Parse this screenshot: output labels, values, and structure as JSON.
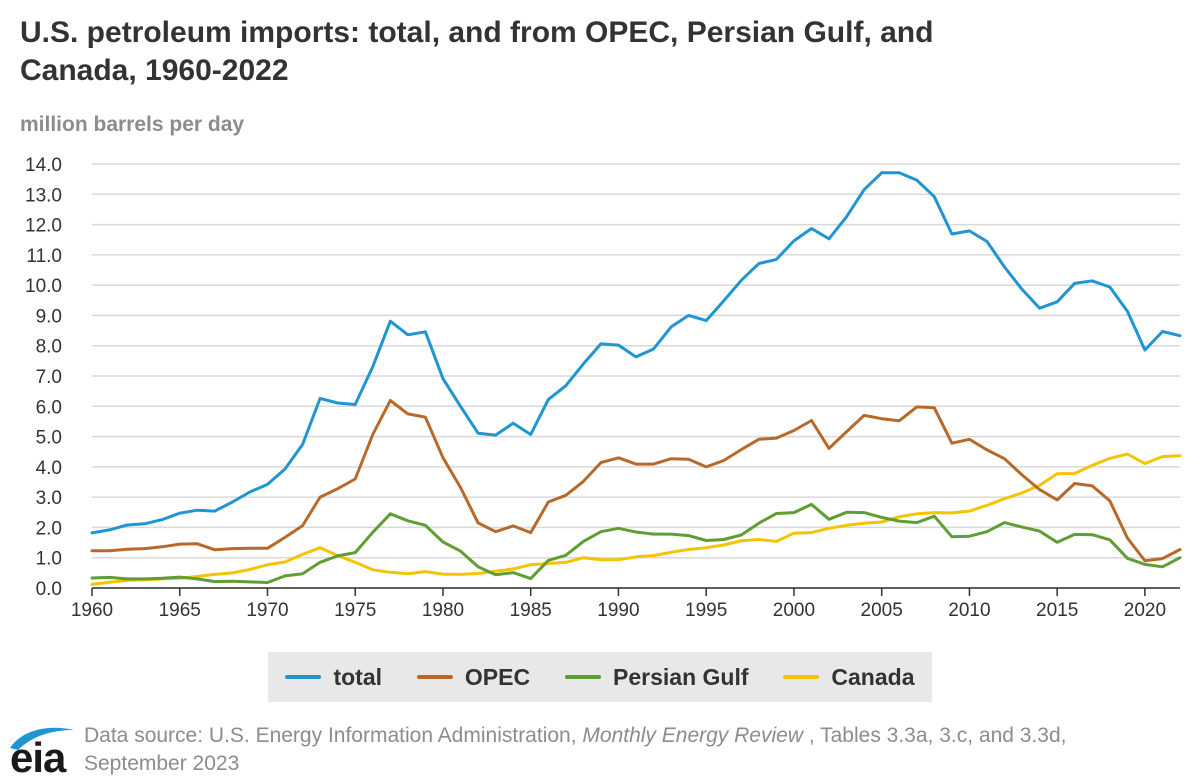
{
  "chart_data": {
    "type": "line",
    "title": "U.S. petroleum imports: total, and from OPEC, Persian Gulf, and Canada, 1960-2022",
    "ylabel": "million barrels per day",
    "xlabel": "",
    "ylim": [
      0,
      14
    ],
    "xlim": [
      1960,
      2022
    ],
    "yticks": [
      "0.0",
      "1.0",
      "2.0",
      "3.0",
      "4.0",
      "5.0",
      "6.0",
      "7.0",
      "8.0",
      "9.0",
      "10.0",
      "11.0",
      "12.0",
      "13.0",
      "14.0"
    ],
    "xticks": [
      "1960",
      "1965",
      "1970",
      "1975",
      "1980",
      "1985",
      "1990",
      "1995",
      "2000",
      "2005",
      "2010",
      "2015",
      "2020"
    ],
    "x": [
      1960,
      1961,
      1962,
      1963,
      1964,
      1965,
      1966,
      1967,
      1968,
      1969,
      1970,
      1971,
      1972,
      1973,
      1974,
      1975,
      1976,
      1977,
      1978,
      1979,
      1980,
      1981,
      1982,
      1983,
      1984,
      1985,
      1986,
      1987,
      1988,
      1989,
      1990,
      1991,
      1992,
      1993,
      1994,
      1995,
      1996,
      1997,
      1998,
      1999,
      2000,
      2001,
      2002,
      2003,
      2004,
      2005,
      2006,
      2007,
      2008,
      2009,
      2010,
      2011,
      2012,
      2013,
      2014,
      2015,
      2016,
      2017,
      2018,
      2019,
      2020,
      2021,
      2022
    ],
    "series": [
      {
        "name": "total",
        "color": "#1f95d3",
        "values": [
          1.82,
          1.92,
          2.08,
          2.12,
          2.26,
          2.47,
          2.57,
          2.54,
          2.84,
          3.17,
          3.42,
          3.93,
          4.74,
          6.26,
          6.11,
          6.06,
          7.31,
          8.81,
          8.36,
          8.46,
          6.91,
          6.0,
          5.11,
          5.05,
          5.44,
          5.07,
          6.22,
          6.68,
          7.4,
          8.06,
          8.02,
          7.63,
          7.89,
          8.62,
          9.0,
          8.83,
          9.48,
          10.16,
          10.71,
          10.85,
          11.46,
          11.87,
          11.53,
          12.26,
          13.15,
          13.71,
          13.71,
          13.47,
          12.92,
          11.69,
          11.79,
          11.44,
          10.6,
          9.86,
          9.24,
          9.45,
          10.06,
          10.14,
          9.94,
          9.14,
          7.86,
          8.47,
          8.33
        ]
      },
      {
        "name": "OPEC",
        "color": "#b8692a",
        "values": [
          1.23,
          1.23,
          1.28,
          1.3,
          1.36,
          1.45,
          1.46,
          1.26,
          1.3,
          1.31,
          1.31,
          1.67,
          2.06,
          3.0,
          3.28,
          3.6,
          5.07,
          6.19,
          5.75,
          5.64,
          4.3,
          3.32,
          2.15,
          1.86,
          2.05,
          1.83,
          2.84,
          3.06,
          3.52,
          4.14,
          4.3,
          4.09,
          4.09,
          4.27,
          4.25,
          4.0,
          4.21,
          4.57,
          4.91,
          4.95,
          5.2,
          5.53,
          4.61,
          5.16,
          5.7,
          5.59,
          5.52,
          5.98,
          5.95,
          4.78,
          4.91,
          4.56,
          4.27,
          3.73,
          3.25,
          2.91,
          3.45,
          3.37,
          2.88,
          1.65,
          0.9,
          0.97,
          1.27
        ]
      },
      {
        "name": "Persian Gulf",
        "color": "#5e9e34",
        "values": [
          0.33,
          0.35,
          0.3,
          0.3,
          0.32,
          0.36,
          0.3,
          0.21,
          0.22,
          0.2,
          0.18,
          0.4,
          0.47,
          0.85,
          1.06,
          1.17,
          1.84,
          2.45,
          2.22,
          2.07,
          1.52,
          1.22,
          0.7,
          0.44,
          0.51,
          0.31,
          0.91,
          1.08,
          1.54,
          1.86,
          1.97,
          1.85,
          1.78,
          1.78,
          1.73,
          1.57,
          1.6,
          1.75,
          2.14,
          2.46,
          2.49,
          2.76,
          2.27,
          2.5,
          2.49,
          2.33,
          2.21,
          2.16,
          2.37,
          1.69,
          1.71,
          1.86,
          2.16,
          2.01,
          1.88,
          1.51,
          1.77,
          1.76,
          1.59,
          0.98,
          0.78,
          0.7,
          1.0
        ]
      },
      {
        "name": "Canada",
        "color": "#f5c400",
        "values": [
          0.12,
          0.19,
          0.25,
          0.27,
          0.3,
          0.32,
          0.38,
          0.45,
          0.5,
          0.61,
          0.77,
          0.86,
          1.11,
          1.33,
          1.07,
          0.85,
          0.6,
          0.52,
          0.47,
          0.54,
          0.46,
          0.45,
          0.48,
          0.55,
          0.63,
          0.77,
          0.81,
          0.85,
          1.0,
          0.93,
          0.93,
          1.03,
          1.07,
          1.18,
          1.27,
          1.33,
          1.42,
          1.56,
          1.6,
          1.54,
          1.81,
          1.83,
          1.97,
          2.07,
          2.14,
          2.18,
          2.35,
          2.45,
          2.49,
          2.48,
          2.54,
          2.73,
          2.95,
          3.14,
          3.39,
          3.77,
          3.78,
          4.05,
          4.28,
          4.42,
          4.11,
          4.34,
          4.37
        ]
      }
    ]
  },
  "legend": {
    "items": [
      {
        "label": "total",
        "color": "#1f95d3"
      },
      {
        "label": "OPEC",
        "color": "#b8692a"
      },
      {
        "label": "Persian Gulf",
        "color": "#5e9e34"
      },
      {
        "label": "Canada",
        "color": "#f5c400"
      }
    ]
  },
  "header": {
    "title_line1": "U.S. petroleum imports: total, and from OPEC, Persian Gulf, and",
    "title_line2": "Canada, 1960-2022",
    "units": "million barrels per day"
  },
  "footer": {
    "source_prefix": "Data source: U.S. Energy Information Administration, ",
    "source_italic": "Monthly Energy Review",
    "source_suffix": " , Tables 3.3a, 3.c, and 3.3d,",
    "source_line2": "September 2023",
    "logo_text": "eia"
  }
}
